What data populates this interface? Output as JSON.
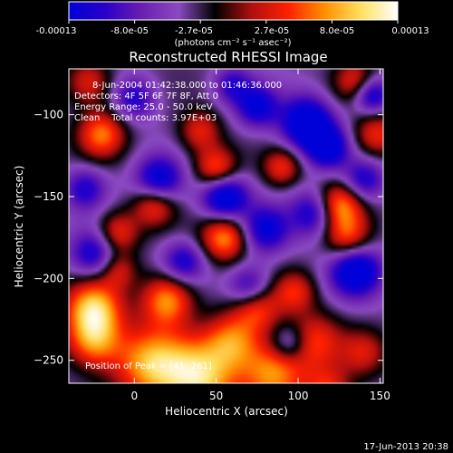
{
  "colorbar": {
    "tick_labels": [
      "-0.00013",
      "-8.0e-05",
      "-2.7e-05",
      "2.7e-05",
      "8.0e-05",
      "0.00013"
    ],
    "unit_label": "(photons cm⁻² s⁻¹ asec⁻²)",
    "colors": [
      "#0000d8",
      "#2a00c8",
      "#6a1fb0",
      "#8a4ac0",
      "#000000",
      "#b01010",
      "#ff2000",
      "#ff9000",
      "#ffe060",
      "#ffffff"
    ]
  },
  "annotations": {
    "line1": "8-Jun-2004 01:42:38.000 to 01:46:36.000",
    "line2": "Detectors: 4F 5F 6F 7F 8F, Att 0",
    "line3": "Energy Range: 25.0 - 50.0 keV",
    "line4": "Clean    Total counts: 3.97E+03",
    "peak": "Position of Peak = [41,-261]"
  },
  "timestamp": "17-Jun-2013 20:38",
  "chart_data": {
    "type": "heatmap",
    "title": "Reconstructed RHESSI Image",
    "xlabel": "Heliocentric X (arcsec)",
    "ylabel": "Heliocentric Y (arcsec)",
    "xlim": [
      -40,
      152
    ],
    "ylim": [
      -264,
      -72
    ],
    "xticks": [
      0,
      50,
      100,
      150
    ],
    "yticks": [
      -250,
      -200,
      -150,
      -100
    ],
    "value_range": [
      -0.00013,
      0.00013
    ],
    "blobs": [
      {
        "x": 40,
        "y": -261,
        "v": 1.0,
        "s": 16
      },
      {
        "x": 10,
        "y": -252,
        "v": 0.9,
        "s": 16
      },
      {
        "x": 85,
        "y": -258,
        "v": 0.85,
        "s": 14
      },
      {
        "x": -25,
        "y": -238,
        "v": 0.8,
        "s": 12
      },
      {
        "x": 60,
        "y": -238,
        "v": 0.7,
        "s": 12
      },
      {
        "x": 110,
        "y": -238,
        "v": 0.6,
        "s": 12
      },
      {
        "x": 140,
        "y": -245,
        "v": 0.45,
        "s": 10
      },
      {
        "x": -25,
        "y": -218,
        "v": 0.95,
        "s": 12
      },
      {
        "x": 20,
        "y": -213,
        "v": 0.85,
        "s": 11
      },
      {
        "x": 75,
        "y": -218,
        "v": 0.6,
        "s": 10
      },
      {
        "x": 98,
        "y": -208,
        "v": 0.55,
        "s": 9
      },
      {
        "x": -10,
        "y": -172,
        "v": 0.6,
        "s": 9
      },
      {
        "x": 55,
        "y": -175,
        "v": 0.85,
        "s": 10
      },
      {
        "x": 130,
        "y": -175,
        "v": 0.65,
        "s": 10
      },
      {
        "x": 12,
        "y": -155,
        "v": 0.65,
        "s": 9
      },
      {
        "x": 50,
        "y": -133,
        "v": 0.75,
        "s": 9
      },
      {
        "x": 125,
        "y": -155,
        "v": 0.85,
        "s": 10
      },
      {
        "x": 90,
        "y": -132,
        "v": 0.55,
        "s": 8
      },
      {
        "x": -20,
        "y": -112,
        "v": 0.75,
        "s": 10
      },
      {
        "x": -28,
        "y": -80,
        "v": 0.55,
        "s": 10
      },
      {
        "x": 148,
        "y": -112,
        "v": 0.6,
        "s": 10
      },
      {
        "x": 135,
        "y": -80,
        "v": 0.55,
        "s": 9
      },
      {
        "x": -10,
        "y": -195,
        "v": 0.45,
        "s": 8
      },
      {
        "x": 40,
        "y": -110,
        "v": 0.55,
        "s": 9
      },
      {
        "x": 118,
        "y": -268,
        "v": 0.55,
        "s": 10
      },
      {
        "x": 105,
        "y": -105,
        "v": -1.0,
        "s": 11
      },
      {
        "x": 118,
        "y": -120,
        "v": -0.8,
        "s": 9
      },
      {
        "x": 55,
        "y": -150,
        "v": -0.95,
        "s": 10
      },
      {
        "x": 15,
        "y": -140,
        "v": -0.8,
        "s": 10
      },
      {
        "x": 135,
        "y": -195,
        "v": -0.95,
        "s": 11
      },
      {
        "x": 80,
        "y": -170,
        "v": -0.7,
        "s": 10
      },
      {
        "x": -25,
        "y": -185,
        "v": -0.65,
        "s": 10
      },
      {
        "x": 30,
        "y": -190,
        "v": -0.6,
        "s": 9
      },
      {
        "x": 145,
        "y": -88,
        "v": -0.8,
        "s": 8
      },
      {
        "x": 70,
        "y": -205,
        "v": -0.6,
        "s": 9
      },
      {
        "x": 75,
        "y": -95,
        "v": -0.7,
        "s": 9
      },
      {
        "x": 95,
        "y": -240,
        "v": -0.5,
        "s": 8
      },
      {
        "x": 110,
        "y": -160,
        "v": -0.7,
        "s": 10
      },
      {
        "x": -30,
        "y": -145,
        "v": -0.55,
        "s": 9
      },
      {
        "x": 0,
        "y": -90,
        "v": -0.55,
        "s": 9
      },
      {
        "x": 60,
        "y": -82,
        "v": -0.5,
        "s": 8
      },
      {
        "x": 140,
        "y": -140,
        "v": -0.6,
        "s": 9
      }
    ]
  }
}
